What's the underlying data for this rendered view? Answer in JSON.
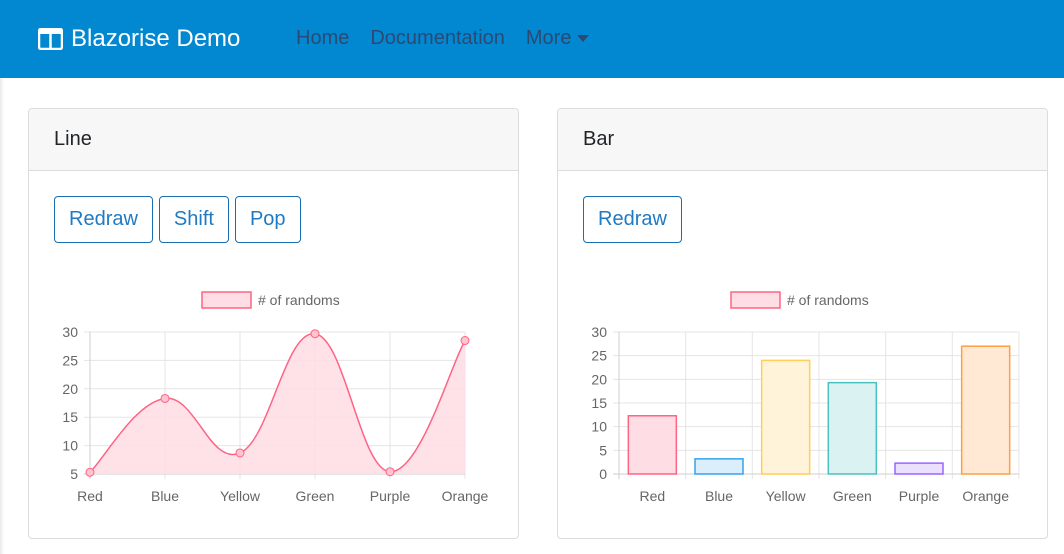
{
  "navbar": {
    "brand": "Blazorise Demo",
    "links": [
      "Home",
      "Documentation",
      "More"
    ]
  },
  "colors": {
    "navbar_bg": "#0288d1",
    "button_border": "#1a6fb0",
    "button_text": "#1f7ac2",
    "line_color": "#ff6384",
    "line_fill": "#ffdde4"
  },
  "cards": [
    {
      "title": "Line",
      "buttons": [
        "Redraw",
        "Shift",
        "Pop"
      ]
    },
    {
      "title": "Bar",
      "buttons": [
        "Redraw"
      ]
    }
  ],
  "chart_data": [
    {
      "type": "line",
      "series": [
        {
          "name": "# of randoms",
          "values": [
            5.3,
            18.3,
            8.7,
            29.7,
            5.4,
            28.5
          ]
        }
      ],
      "categories": [
        "Red",
        "Blue",
        "Yellow",
        "Green",
        "Purple",
        "Orange"
      ],
      "ylim": [
        5,
        30
      ],
      "yticks": [
        5,
        10,
        15,
        20,
        25,
        30
      ],
      "fill": true,
      "grid": true,
      "legend": "top"
    },
    {
      "type": "bar",
      "series": [
        {
          "name": "# of randoms",
          "values": [
            12.3,
            3.2,
            24.0,
            19.3,
            2.3,
            27.0
          ]
        }
      ],
      "categories": [
        "Red",
        "Blue",
        "Yellow",
        "Green",
        "Purple",
        "Orange"
      ],
      "bar_colors": [
        {
          "fill": "#ffdde4",
          "stroke": "#ff6384"
        },
        {
          "fill": "#dbeefb",
          "stroke": "#36a2eb"
        },
        {
          "fill": "#fff3d9",
          "stroke": "#ffce56"
        },
        {
          "fill": "#dbf2f2",
          "stroke": "#4bc0c0"
        },
        {
          "fill": "#ebe0ff",
          "stroke": "#9966ff"
        },
        {
          "fill": "#ffe9d4",
          "stroke": "#ff9f40"
        }
      ],
      "ylim": [
        0,
        30
      ],
      "yticks": [
        0,
        5,
        10,
        15,
        20,
        25,
        30
      ],
      "grid": true,
      "legend": "top"
    }
  ]
}
